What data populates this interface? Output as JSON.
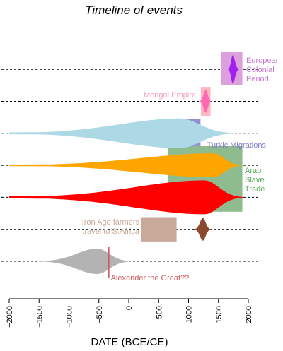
{
  "chart_data": {
    "type": "violin",
    "title": "Timeline of events",
    "xlabel": "DATE (BCE/CE)",
    "xlim": [
      -2000,
      2000
    ],
    "xticks": [
      -2000,
      -1500,
      -1000,
      -500,
      0,
      500,
      1000,
      1500,
      2000
    ],
    "grid": false,
    "rows": [
      {
        "row": 1,
        "span": [
          -1480,
          30
        ],
        "center": -530,
        "peak_halfheight": 18,
        "color": "#b3b3b3"
      },
      {
        "row": 2,
        "span": [
          1100,
          1370
        ],
        "center": 1240,
        "peak_halfheight": 16,
        "color": "#8b4a2b"
      },
      {
        "row": 3,
        "span": [
          -2000,
          1920
        ],
        "center": 1270,
        "peak_halfheight": 24,
        "color": "#ff0000"
      },
      {
        "row": 4,
        "span": [
          -2000,
          1900
        ],
        "center": 1420,
        "peak_halfheight": 17,
        "color": "#ffa500"
      },
      {
        "row": 5,
        "span": [
          -2000,
          1770
        ],
        "center": 860,
        "peak_halfheight": 21,
        "color": "#add8e6"
      },
      {
        "row": 6,
        "span": [
          1180,
          1380
        ],
        "center": 1290,
        "peak_halfheight": 16,
        "color": "#ff69b4"
      },
      {
        "row": 7,
        "span": [
          1660,
          1840
        ],
        "center": 1740,
        "peak_halfheight": 20,
        "color": "#a020f0"
      }
    ],
    "periods": [
      {
        "label": "European Colonial Period",
        "x0": 1550,
        "x1": 1900,
        "row_bottom": 6.5,
        "row_top": 7.55,
        "color": "#dda0dd",
        "label_color": "#c878d4"
      },
      {
        "label": "Mongol Empire",
        "x0": 1206,
        "x1": 1368,
        "row_bottom": 5.55,
        "row_top": 6.45,
        "color": "#ffb6c1",
        "label_color": "#f2a0c0"
      },
      {
        "label": "Turkic Migrations",
        "x0": 500,
        "x1": 1200,
        "row_bottom": 4.6,
        "row_top": 5.45,
        "color": "#9090d0",
        "label_color": "#8080c8"
      },
      {
        "label": "Arab Slave Trade",
        "x0": 650,
        "x1": 1900,
        "row_bottom": 2.55,
        "row_top": 4.6,
        "color": "#8fbc8f",
        "label_color": "#5aab5a"
      },
      {
        "label": "Iron Age farmers travel to S.Africa",
        "x0": 200,
        "x1": 800,
        "row_bottom": 1.62,
        "row_top": 2.38,
        "color": "#c9aa9a",
        "label_color": "#c9aa9a"
      }
    ],
    "markers": [
      {
        "label": "Alexander the Great??",
        "x": -336,
        "color": "#cd5c5c"
      }
    ]
  }
}
